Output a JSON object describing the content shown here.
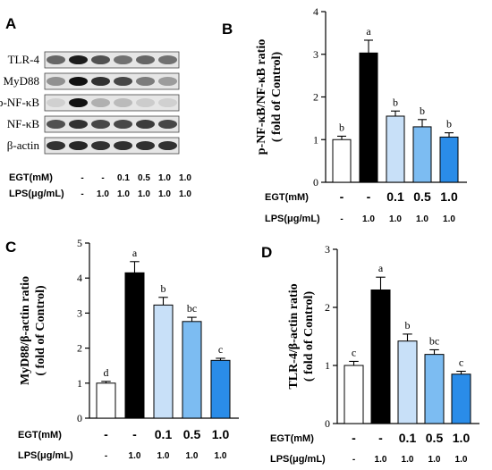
{
  "panels": [
    {
      "letter": "A"
    },
    {
      "letter": "B"
    },
    {
      "letter": "C"
    },
    {
      "letter": "D"
    }
  ],
  "western_blot": {
    "proteins": [
      "TLR-4",
      "MyD88",
      "p-NF-κB",
      "NF-κB",
      "β-actin"
    ],
    "lanes": 6,
    "egt_label": "EGT(mM)",
    "lps_label": "LPS(μg/mL)",
    "egt_values": [
      "-",
      "-",
      "0.1",
      "0.5",
      "1.0",
      "1.0"
    ],
    "lps_values": [
      "-",
      "1.0",
      "1.0",
      "1.0",
      "1.0",
      "1.0"
    ]
  },
  "conditions": {
    "egt_label": "EGT(mM)",
    "lps_label": "LPS(μg/mL)",
    "egt_values": [
      "-",
      "-",
      "0.1",
      "0.5",
      "1.0"
    ],
    "lps_values": [
      "-",
      "1.0",
      "1.0",
      "1.0",
      "1.0"
    ]
  },
  "bar_colors": [
    "#ffffff",
    "#000000",
    "#c8e0f8",
    "#7cbcf2",
    "#2a8ce8"
  ],
  "chart_data": [
    {
      "panel": "B",
      "type": "bar",
      "ylabel_line1": "p-NF-κB/NF-κB ratio",
      "ylabel_line2": "( fold of Control)",
      "ylim": [
        0,
        4
      ],
      "yticks": [
        0,
        1,
        2,
        3,
        4
      ],
      "values": [
        1.0,
        3.03,
        1.55,
        1.3,
        1.06
      ],
      "errors": [
        0.08,
        0.3,
        0.12,
        0.17,
        0.1
      ],
      "significance": [
        "b",
        "a",
        "b",
        "b",
        "b"
      ]
    },
    {
      "panel": "C",
      "type": "bar",
      "ylabel_line1": "MyD88/β-actin ratio",
      "ylabel_line2": "( fold of Control)",
      "ylim": [
        0,
        5
      ],
      "yticks": [
        0,
        1,
        2,
        3,
        4,
        5
      ],
      "values": [
        1.0,
        4.15,
        3.23,
        2.76,
        1.65
      ],
      "errors": [
        0.05,
        0.32,
        0.22,
        0.12,
        0.06
      ],
      "significance": [
        "d",
        "a",
        "b",
        "bc",
        "c"
      ]
    },
    {
      "panel": "D",
      "type": "bar",
      "ylabel_line1": "TLR-4/β-actin ratio",
      "ylabel_line2": "( fold of Control)",
      "ylim": [
        0,
        3
      ],
      "yticks": [
        0,
        1,
        2,
        3
      ],
      "values": [
        1.0,
        2.3,
        1.42,
        1.19,
        0.85
      ],
      "errors": [
        0.07,
        0.22,
        0.12,
        0.08,
        0.05
      ],
      "significance": [
        "c",
        "a",
        "b",
        "bc",
        "c"
      ]
    }
  ]
}
